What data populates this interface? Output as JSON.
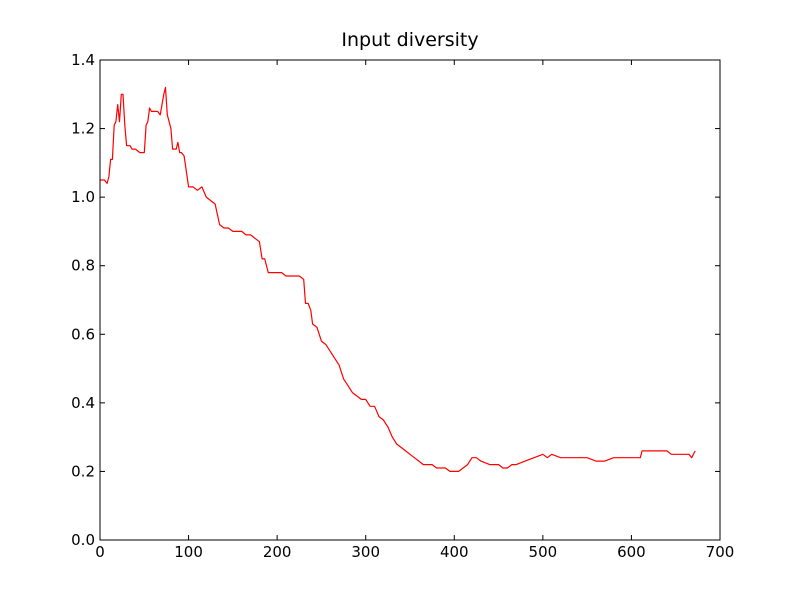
{
  "chart_data": {
    "type": "line",
    "title": "Input diversity",
    "xlabel": "",
    "ylabel": "",
    "xlim": [
      0,
      700
    ],
    "ylim": [
      0.0,
      1.4
    ],
    "x_ticks": [
      "0",
      "100",
      "200",
      "300",
      "400",
      "500",
      "600",
      "700"
    ],
    "y_ticks": [
      "0.0",
      "0.2",
      "0.4",
      "0.6",
      "0.8",
      "1.0",
      "1.2",
      "1.4"
    ],
    "grid": false,
    "legend": "none",
    "series": [
      {
        "color": "#ff0000",
        "x": [
          0,
          5,
          8,
          10,
          12,
          14,
          16,
          18,
          20,
          22,
          24,
          26,
          28,
          30,
          32,
          34,
          36,
          40,
          45,
          50,
          52,
          54,
          56,
          58,
          60,
          65,
          68,
          70,
          72,
          74,
          76,
          78,
          80,
          82,
          84,
          86,
          88,
          90,
          92,
          95,
          100,
          105,
          110,
          115,
          120,
          125,
          130,
          135,
          140,
          145,
          150,
          155,
          160,
          165,
          170,
          175,
          180,
          183,
          186,
          190,
          195,
          200,
          205,
          210,
          215,
          220,
          225,
          230,
          232,
          235,
          238,
          240,
          245,
          250,
          255,
          260,
          265,
          270,
          275,
          280,
          285,
          290,
          295,
          300,
          305,
          310,
          315,
          320,
          325,
          330,
          335,
          340,
          345,
          350,
          355,
          360,
          365,
          370,
          375,
          380,
          385,
          390,
          395,
          400,
          405,
          410,
          415,
          420,
          425,
          430,
          440,
          450,
          455,
          460,
          465,
          470,
          480,
          490,
          500,
          505,
          510,
          520,
          530,
          540,
          550,
          560,
          570,
          580,
          590,
          600,
          610,
          612,
          620,
          630,
          640,
          645,
          650,
          660,
          665,
          668,
          670,
          672
        ],
        "y": [
          1.05,
          1.05,
          1.04,
          1.06,
          1.11,
          1.11,
          1.21,
          1.22,
          1.27,
          1.22,
          1.3,
          1.3,
          1.21,
          1.15,
          1.15,
          1.15,
          1.14,
          1.14,
          1.13,
          1.13,
          1.21,
          1.22,
          1.26,
          1.25,
          1.25,
          1.25,
          1.24,
          1.27,
          1.3,
          1.32,
          1.24,
          1.22,
          1.2,
          1.14,
          1.14,
          1.14,
          1.16,
          1.13,
          1.13,
          1.12,
          1.03,
          1.03,
          1.02,
          1.03,
          1.0,
          0.99,
          0.98,
          0.92,
          0.91,
          0.91,
          0.9,
          0.9,
          0.9,
          0.89,
          0.89,
          0.88,
          0.87,
          0.82,
          0.82,
          0.78,
          0.78,
          0.78,
          0.78,
          0.77,
          0.77,
          0.77,
          0.77,
          0.76,
          0.69,
          0.69,
          0.67,
          0.63,
          0.62,
          0.58,
          0.57,
          0.55,
          0.53,
          0.51,
          0.47,
          0.45,
          0.43,
          0.42,
          0.41,
          0.41,
          0.39,
          0.39,
          0.36,
          0.35,
          0.33,
          0.3,
          0.28,
          0.27,
          0.26,
          0.25,
          0.24,
          0.23,
          0.22,
          0.22,
          0.22,
          0.21,
          0.21,
          0.21,
          0.2,
          0.2,
          0.2,
          0.21,
          0.22,
          0.24,
          0.24,
          0.23,
          0.22,
          0.22,
          0.21,
          0.21,
          0.22,
          0.22,
          0.23,
          0.24,
          0.25,
          0.24,
          0.25,
          0.24,
          0.24,
          0.24,
          0.24,
          0.23,
          0.23,
          0.24,
          0.24,
          0.24,
          0.24,
          0.26,
          0.26,
          0.26,
          0.26,
          0.25,
          0.25,
          0.25,
          0.25,
          0.24,
          0.25,
          0.26
        ]
      }
    ]
  }
}
